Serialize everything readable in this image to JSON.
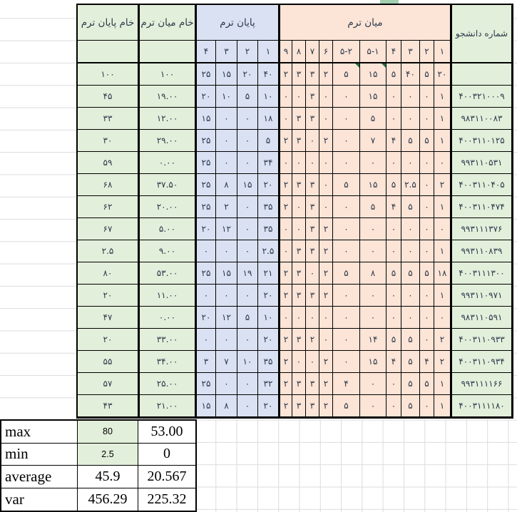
{
  "colors": {
    "green_fill": "#e2efda",
    "blue_fill": "#d9e1f2",
    "peach_fill": "#fce4d6",
    "error_triangle": "#1e7145",
    "top_cell_fill": "#a2cfae",
    "grid_line": "#dcdcdc",
    "text_dark": "#2b3a4d"
  },
  "table": {
    "headers": {
      "raw_final": "خام پایان ترم",
      "raw_midterm": "خام میان ترم",
      "final_group": "پایان ترم",
      "midterm_group": "میان ترم",
      "student": "شماره دانشجو"
    },
    "subcols": {
      "final": [
        "۴",
        "۳",
        "۲",
        "۱"
      ],
      "midterm": [
        "۹",
        "۸",
        "۷",
        "۶",
        "۵-۲",
        "۵-۱",
        "۴",
        "۳",
        "۲",
        "۱"
      ]
    },
    "weights_row": {
      "raw_final": "۱۰۰",
      "raw_midterm": "۱۰۰",
      "final": [
        "۲۵",
        "۱۵",
        "۲۰",
        "۴۰"
      ],
      "midterm": [
        "۲",
        "۳",
        "۳",
        "۲",
        "۵",
        "۱۵",
        "۵",
        "۴۰",
        "۵",
        "۲۰"
      ],
      "student": "",
      "error_marker_indices": [
        4,
        5
      ]
    },
    "rows": [
      {
        "raw_final": "۴۵",
        "raw_midterm": "۱۹.۰۰",
        "final": [
          "۲۰",
          "۱۰",
          "۵",
          "۱۰"
        ],
        "midterm": [
          "۰",
          "۰",
          "۳",
          "۰",
          "۰",
          "۱۵",
          "۰",
          "۰",
          "۰",
          "۱"
        ],
        "student": "۴۰۰۳۲۱۰۰۰۹"
      },
      {
        "raw_final": "۳۳",
        "raw_midterm": "۱۲.۰۰",
        "final": [
          "۱۵",
          "۰",
          "۰",
          "۱۸"
        ],
        "midterm": [
          "۰",
          "۳",
          "۳",
          "۰",
          "۰",
          "۵",
          "۰",
          "۰",
          "۰",
          "۱"
        ],
        "student": "۹۸۳۱۱۰۰۸۳"
      },
      {
        "raw_final": "۳۰",
        "raw_midterm": "۲۹.۰۰",
        "final": [
          "۲۵",
          "۰",
          "۰",
          "۵"
        ],
        "midterm": [
          "۲",
          "۳",
          "۰",
          "۲",
          "۰",
          "۷",
          "۴",
          "۵",
          "۵",
          "۱"
        ],
        "student": "۴۰۰۳۱۱۰۱۲۵"
      },
      {
        "raw_final": "۵۹",
        "raw_midterm": "۰.۰۰",
        "final": [
          "۲۵",
          "۰",
          "۰",
          "۳۴"
        ],
        "midterm": [
          "۰",
          "۰",
          "۰",
          "۰",
          "۰",
          "۰",
          "۰",
          "۰",
          "۰",
          "۰"
        ],
        "student": "۹۹۳۱۱۰۵۳۱"
      },
      {
        "raw_final": "۶۸",
        "raw_midterm": "۳۷.۵۰",
        "final": [
          "۲۵",
          "۸",
          "۱۵",
          "۲۰"
        ],
        "midterm": [
          "۲",
          "۳",
          "۳",
          "۰",
          "۵",
          "۱۵",
          "۵",
          "۲.۵",
          "۰",
          "۲"
        ],
        "student": "۴۰۰۳۱۱۰۴۰۵"
      },
      {
        "raw_final": "۶۲",
        "raw_midterm": "۲۰.۰۰",
        "final": [
          "۲۵",
          "۲",
          "۰",
          "۳۵"
        ],
        "midterm": [
          "۲",
          "۰",
          "۳",
          "۰",
          "۰",
          "۵",
          "۴",
          "۵",
          "۰",
          "۱"
        ],
        "student": "۴۰۰۳۱۱۰۴۷۴"
      },
      {
        "raw_final": "۶۷",
        "raw_midterm": "۵.۰۰",
        "final": [
          "۲۰",
          "۱۲",
          "۰",
          "۳۵"
        ],
        "midterm": [
          "۰",
          "۰",
          "۳",
          "۲",
          "۰",
          "۰",
          "۰",
          "۰",
          "۰",
          "۰"
        ],
        "student": "۹۹۳۱۱۱۳۷۶"
      },
      {
        "raw_final": "۲.۵",
        "raw_midterm": "۹.۰۰",
        "final": [
          "۰",
          "۰",
          "۰",
          "۲.۵"
        ],
        "midterm": [
          "۰",
          "۳",
          "۳",
          "۲",
          "۰",
          "۰",
          "۰",
          "۰",
          "۰",
          "۱"
        ],
        "student": "۹۹۳۱۱۰۸۳۹"
      },
      {
        "raw_final": "۸۰",
        "raw_midterm": "۵۳.۰۰",
        "final": [
          "۲۵",
          "۱۵",
          "۱۹",
          "۲۱"
        ],
        "midterm": [
          "۲",
          "۳",
          "۰",
          "۲",
          "۵",
          "۸",
          "۵",
          "۵",
          "۵",
          "۱۸"
        ],
        "student": "۴۰۰۳۱۱۱۳۰۰"
      },
      {
        "raw_final": "۲۰",
        "raw_midterm": "۱۱.۰۰",
        "final": [
          "۰",
          "۰",
          "۰",
          "۲۰"
        ],
        "midterm": [
          "۲",
          "۳",
          "۳",
          "۲",
          "۰",
          "۰",
          "۰",
          "۰",
          "۰",
          "۱"
        ],
        "student": "۹۹۳۱۱۰۹۷۱"
      },
      {
        "raw_final": "۴۷",
        "raw_midterm": "۰.۰۰",
        "final": [
          "۲۰",
          "۱۲",
          "۵",
          "۱۰"
        ],
        "midterm": [
          "۰",
          "۰",
          "۰",
          "۰",
          "۰",
          "۰",
          "۰",
          "۰",
          "۰",
          "۰"
        ],
        "student": "۹۸۳۱۱۰۵۹۱"
      },
      {
        "raw_final": "۲۰",
        "raw_midterm": "۳۳.۰۰",
        "final": [
          "۰",
          "۰",
          "۰",
          "۲۰"
        ],
        "midterm": [
          "۲",
          "۳",
          "۲",
          "۰",
          "۰",
          "۱۴",
          "۵",
          "۵",
          "۰",
          "۲"
        ],
        "student": "۴۰۰۳۱۱۰۹۳۳"
      },
      {
        "raw_final": "۵۵",
        "raw_midterm": "۳۴.۰۰",
        "final": [
          "۳",
          "۷",
          "۱۰",
          "۳۵"
        ],
        "midterm": [
          "۲",
          "۰",
          "۰",
          "۲",
          "۰",
          "۱۵",
          "۴",
          "۵",
          "۴",
          "۲"
        ],
        "student": "۴۰۰۳۱۱۰۹۳۴"
      },
      {
        "raw_final": "۵۷",
        "raw_midterm": "۲۵.۰۰",
        "final": [
          "۲۵",
          "۰",
          "۰",
          "۳۲"
        ],
        "midterm": [
          "۲",
          "۳",
          "۳",
          "۲",
          "۴",
          "۰",
          "۰",
          "۵",
          "۵",
          "۱"
        ],
        "student": "۹۹۳۱۱۱۱۶۶"
      },
      {
        "raw_final": "۴۳",
        "raw_midterm": "۲۱.۰۰",
        "final": [
          "۱۵",
          "۸",
          "۰",
          "۲۰"
        ],
        "midterm": [
          "۲",
          "۳",
          "۳",
          "۲",
          "۵",
          "۰",
          "۰",
          "۵",
          "۰",
          "۱"
        ],
        "student": "۴۰۰۳۱۱۱۱۸۰"
      }
    ]
  },
  "summary": {
    "rows": [
      {
        "label": "max",
        "final_value": "80",
        "midterm_value": "53.00",
        "highlight_final": true
      },
      {
        "label": "min",
        "final_value": "2.5",
        "midterm_value": "0",
        "highlight_final": true
      },
      {
        "label": "average",
        "final_value": "45.9",
        "midterm_value": "20.567",
        "highlight_final": false
      },
      {
        "label": "var",
        "final_value": "456.29",
        "midterm_value": "225.32",
        "highlight_final": false
      }
    ]
  }
}
